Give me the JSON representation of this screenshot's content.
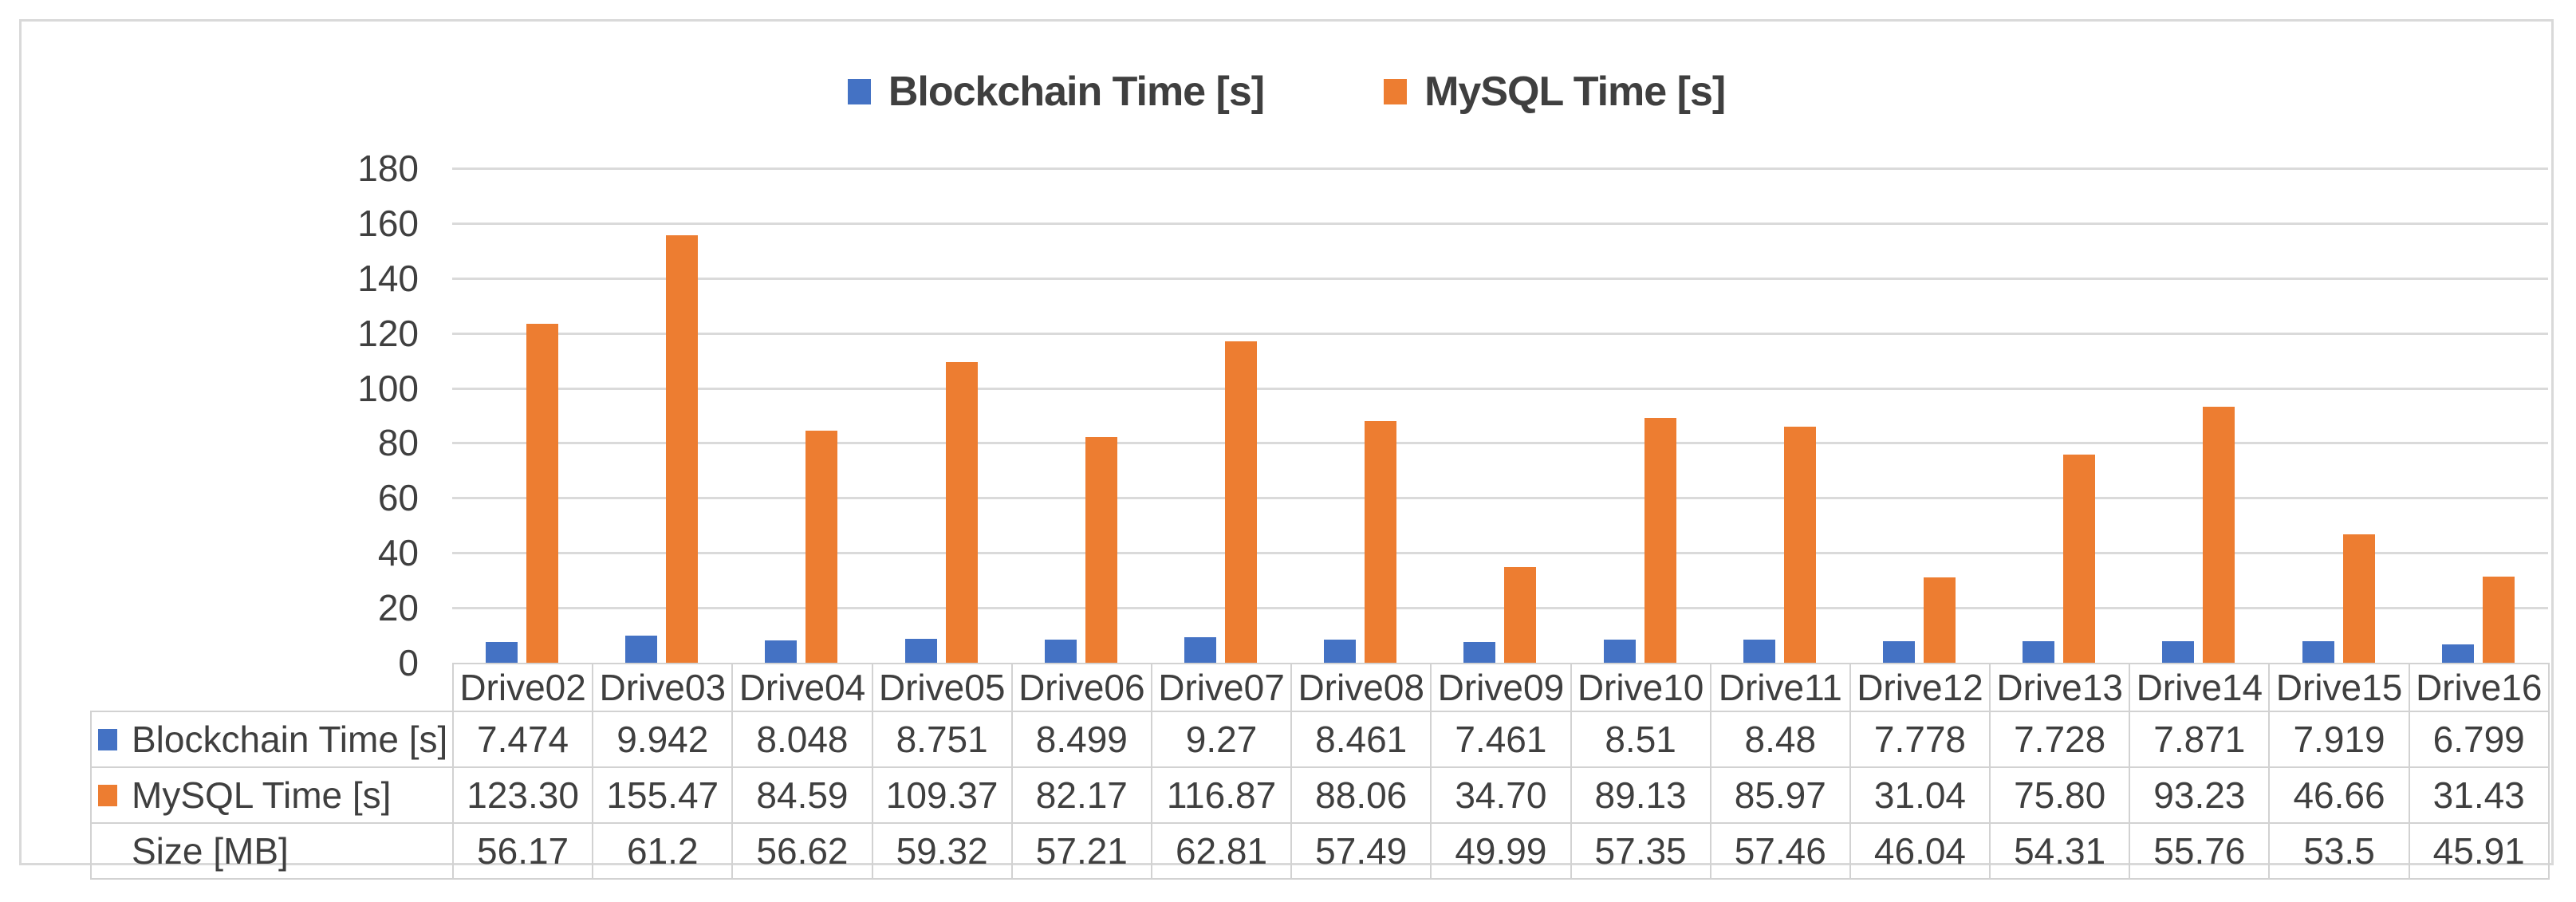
{
  "chart_data": {
    "type": "bar",
    "title": "",
    "categories": [
      "Drive02",
      "Drive03",
      "Drive04",
      "Drive05",
      "Drive06",
      "Drive07",
      "Drive08",
      "Drive09",
      "Drive10",
      "Drive11",
      "Drive12",
      "Drive13",
      "Drive14",
      "Drive15",
      "Drive16"
    ],
    "series": [
      {
        "name": "Blockchain Time [s]",
        "color": "#4472C4",
        "values": [
          7.474,
          9.942,
          8.048,
          8.751,
          8.499,
          9.27,
          8.461,
          7.461,
          8.51,
          8.48,
          7.778,
          7.728,
          7.871,
          7.919,
          6.799
        ]
      },
      {
        "name": "MySQL Time [s]",
        "color": "#ED7D31",
        "values": [
          123.3,
          155.47,
          84.59,
          109.37,
          82.17,
          116.87,
          88.06,
          34.7,
          89.13,
          85.97,
          31.04,
          75.8,
          93.23,
          46.66,
          31.43
        ]
      }
    ],
    "ylim": [
      0,
      180
    ],
    "ytick_step": 20,
    "grid": true,
    "legend_position": "top",
    "data_table": {
      "rows": [
        {
          "label": "Blockchain Time [s]",
          "key_color": "#4472C4",
          "values": [
            "7.474",
            "9.942",
            "8.048",
            "8.751",
            "8.499",
            "9.27",
            "8.461",
            "7.461",
            "8.51",
            "8.48",
            "7.778",
            "7.728",
            "7.871",
            "7.919",
            "6.799"
          ]
        },
        {
          "label": "MySQL Time [s]",
          "key_color": "#ED7D31",
          "values": [
            "123.30",
            "155.47",
            "84.59",
            "109.37",
            "82.17",
            "116.87",
            "88.06",
            "34.70",
            "89.13",
            "85.97",
            "31.04",
            "75.80",
            "93.23",
            "46.66",
            "31.43"
          ]
        },
        {
          "label": "Size [MB]",
          "key_color": null,
          "values": [
            "56.17",
            "61.2",
            "56.62",
            "59.32",
            "57.21",
            "62.81",
            "57.49",
            "49.99",
            "57.35",
            "57.46",
            "46.04",
            "54.31",
            "55.76",
            "53.5",
            "45.91"
          ]
        }
      ]
    }
  },
  "legend": {
    "items": [
      {
        "label": "Blockchain Time [s]",
        "color": "#4472C4"
      },
      {
        "label": "MySQL Time [s]",
        "color": "#ED7D31"
      }
    ]
  },
  "colors": {
    "blue_series": "#4472C4",
    "orange_series": "#ED7D31",
    "text": "#3f3f3f",
    "gridline": "#dadada",
    "table_border": "#d2d2d2",
    "frame_border": "#d9d9d9"
  }
}
